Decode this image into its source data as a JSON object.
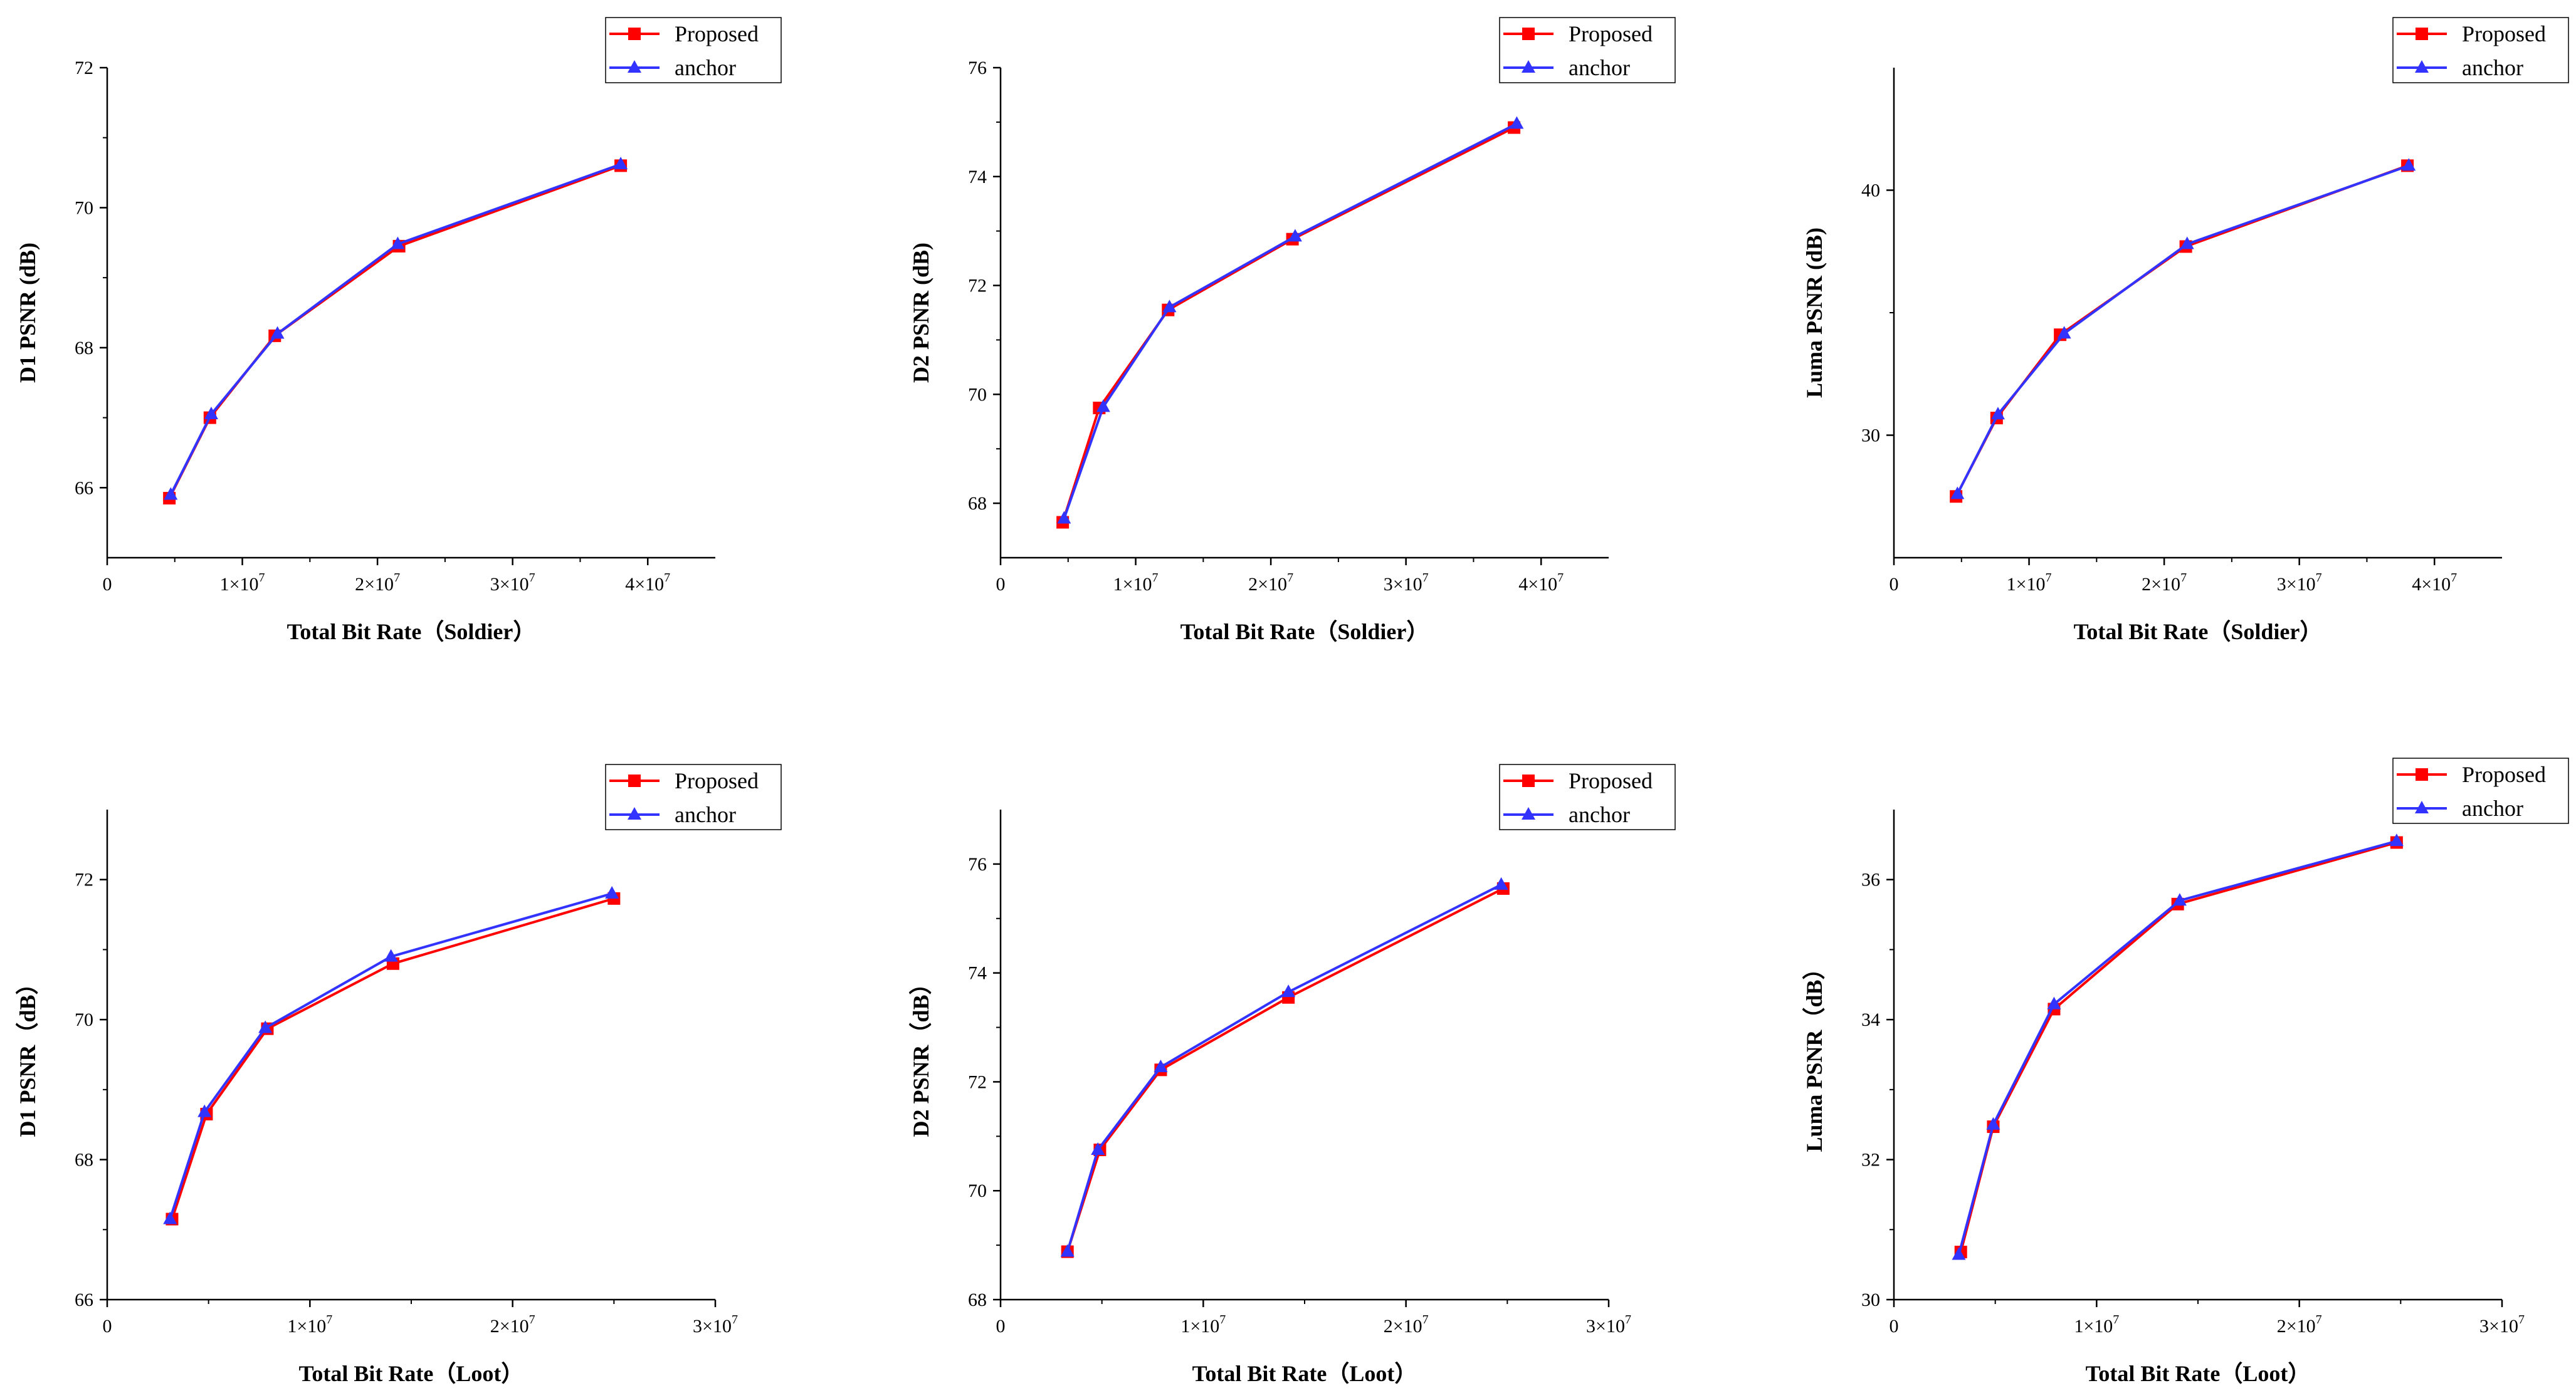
{
  "colors": {
    "proposed": "#ff0000",
    "anchor": "#3333ff",
    "axis": "#000000",
    "background": "#ffffff"
  },
  "chart_data": [
    {
      "type": "line",
      "id": "soldier-d1",
      "xlabel": "Total Bit Rate（Soldier）",
      "ylabel": "D1 PSNR (dB)",
      "xlim": [
        0,
        45000000.0
      ],
      "ylim": [
        65,
        72
      ],
      "xticks": [
        0,
        10000000.0,
        20000000.0,
        30000000.0,
        40000000.0
      ],
      "xtick_labels": [
        "0",
        "1×10",
        "2×10",
        "3×10",
        "4×10"
      ],
      "xtick_exp": "7",
      "yticks": [
        66,
        68,
        70,
        72
      ],
      "ytick_labels": [
        "66",
        "68",
        "70",
        "72"
      ],
      "legend": {
        "entries": [
          "Proposed",
          "anchor"
        ],
        "position": "top-right"
      },
      "series": [
        {
          "name": "Proposed",
          "color": "#ff0000",
          "marker": "square",
          "x": [
            4600000.0,
            7600000.0,
            12400000.0,
            21600000.0,
            38000000.0
          ],
          "y": [
            65.85,
            67.0,
            68.17,
            69.45,
            70.6
          ]
        },
        {
          "name": "anchor",
          "color": "#3333ff",
          "marker": "triangle",
          "x": [
            4700000.0,
            7700000.0,
            12600000.0,
            21500000.0,
            38000000.0
          ],
          "y": [
            65.9,
            67.05,
            68.2,
            69.48,
            70.62
          ]
        }
      ]
    },
    {
      "type": "line",
      "id": "soldier-d2",
      "xlabel": "Total Bit Rate（Soldier）",
      "ylabel": "D2 PSNR (dB)",
      "xlim": [
        0,
        45000000.0
      ],
      "ylim": [
        67,
        76
      ],
      "xticks": [
        0,
        10000000.0,
        20000000.0,
        30000000.0,
        40000000.0
      ],
      "xtick_labels": [
        "0",
        "1×10",
        "2×10",
        "3×10",
        "4×10"
      ],
      "xtick_exp": "7",
      "yticks": [
        68,
        70,
        72,
        74,
        76
      ],
      "ytick_labels": [
        "68",
        "70",
        "72",
        "74",
        "76"
      ],
      "legend": {
        "entries": [
          "Proposed",
          "anchor"
        ],
        "position": "top-right"
      },
      "series": [
        {
          "name": "Proposed",
          "color": "#ff0000",
          "marker": "square",
          "x": [
            4600000.0,
            7300000.0,
            12400000.0,
            21600000.0,
            38000000.0
          ],
          "y": [
            67.65,
            69.75,
            71.55,
            72.85,
            74.9
          ]
        },
        {
          "name": "anchor",
          "color": "#3333ff",
          "marker": "triangle",
          "x": [
            4700000.0,
            7600000.0,
            12500000.0,
            21800000.0,
            38200000.0
          ],
          "y": [
            67.72,
            69.77,
            71.6,
            72.9,
            74.97
          ]
        }
      ]
    },
    {
      "type": "line",
      "id": "soldier-luma",
      "xlabel": "Total Bit Rate（Soldier）",
      "ylabel": "Luma PSNR (dB)",
      "xlim": [
        0,
        45000000.0
      ],
      "ylim": [
        25,
        45
      ],
      "xticks": [
        0,
        10000000.0,
        20000000.0,
        30000000.0,
        40000000.0
      ],
      "xtick_labels": [
        "0",
        "1×10",
        "2×10",
        "3×10",
        "4×10"
      ],
      "xtick_exp": "7",
      "yticks": [
        30,
        40
      ],
      "ytick_labels": [
        "30",
        "40"
      ],
      "legend": {
        "entries": [
          "Proposed",
          "anchor"
        ],
        "position": "top-right"
      },
      "series": [
        {
          "name": "Proposed",
          "color": "#ff0000",
          "marker": "square",
          "x": [
            4600000.0,
            7600000.0,
            12300000.0,
            21600000.0,
            38000000.0
          ],
          "y": [
            27.5,
            30.7,
            34.1,
            37.7,
            41.0
          ]
        },
        {
          "name": "anchor",
          "color": "#3333ff",
          "marker": "triangle",
          "x": [
            4700000.0,
            7700000.0,
            12600000.0,
            21700000.0,
            38100000.0
          ],
          "y": [
            27.6,
            30.85,
            34.15,
            37.8,
            41.0
          ]
        }
      ]
    },
    {
      "type": "line",
      "id": "loot-d1",
      "xlabel": "Total Bit Rate（Loot）",
      "ylabel": "D1 PSNR（dB）",
      "xlim": [
        0,
        30000000.0
      ],
      "ylim": [
        66,
        73
      ],
      "xticks": [
        0,
        10000000.0,
        20000000.0,
        30000000.0
      ],
      "xtick_labels": [
        "0",
        "1×10",
        "2×10",
        "3×10"
      ],
      "xtick_exp": "7",
      "yticks": [
        66,
        68,
        70,
        72
      ],
      "ytick_labels": [
        "66",
        "68",
        "70",
        "72"
      ],
      "legend": {
        "entries": [
          "Proposed",
          "anchor"
        ],
        "position": "top-right"
      },
      "series": [
        {
          "name": "Proposed",
          "color": "#ff0000",
          "marker": "square",
          "x": [
            3200000.0,
            4900000.0,
            7900000.0,
            14100000.0,
            25000000.0
          ],
          "y": [
            67.15,
            68.65,
            69.87,
            70.8,
            71.73
          ]
        },
        {
          "name": "anchor",
          "color": "#3333ff",
          "marker": "triangle",
          "x": [
            3100000.0,
            4800000.0,
            7800000.0,
            14000000.0,
            24900000.0
          ],
          "y": [
            67.15,
            68.68,
            69.88,
            70.9,
            71.8
          ]
        }
      ]
    },
    {
      "type": "line",
      "id": "loot-d2",
      "xlabel": "Total Bit Rate（Loot）",
      "ylabel": "D2 PSNR（dB）",
      "xlim": [
        0,
        30000000.0
      ],
      "ylim": [
        68,
        77
      ],
      "xticks": [
        0,
        10000000.0,
        20000000.0,
        30000000.0
      ],
      "xtick_labels": [
        "0",
        "1×10",
        "2×10",
        "3×10"
      ],
      "xtick_exp": "7",
      "yticks": [
        68,
        70,
        72,
        74,
        76
      ],
      "ytick_labels": [
        "68",
        "70",
        "72",
        "74",
        "76"
      ],
      "legend": {
        "entries": [
          "Proposed",
          "anchor"
        ],
        "position": "top-right"
      },
      "series": [
        {
          "name": "Proposed",
          "color": "#ff0000",
          "marker": "square",
          "x": [
            3300000.0,
            4900000.0,
            7900000.0,
            14200000.0,
            24800000.0
          ],
          "y": [
            68.88,
            70.75,
            72.22,
            73.55,
            75.55
          ]
        },
        {
          "name": "anchor",
          "color": "#3333ff",
          "marker": "triangle",
          "x": [
            3300000.0,
            4800000.0,
            7900000.0,
            14200000.0,
            24700000.0
          ],
          "y": [
            68.88,
            70.75,
            72.27,
            73.65,
            75.62
          ]
        }
      ]
    },
    {
      "type": "line",
      "id": "loot-luma",
      "xlabel": "Total Bit Rate（Loot）",
      "ylabel": "Luma PSNR（dB）",
      "xlim": [
        0,
        30000000.0
      ],
      "ylim": [
        30,
        37
      ],
      "xticks": [
        0,
        10000000.0,
        20000000.0,
        30000000.0
      ],
      "xtick_labels": [
        "0",
        "1×10",
        "2×10",
        "3×10"
      ],
      "xtick_exp": "7",
      "yticks": [
        30,
        32,
        34,
        36
      ],
      "ytick_labels": [
        "30",
        "32",
        "34",
        "36"
      ],
      "legend": {
        "entries": [
          "Proposed",
          "anchor"
        ],
        "position": "top-right"
      },
      "series": [
        {
          "name": "Proposed",
          "color": "#ff0000",
          "marker": "square",
          "x": [
            3300000.0,
            4900000.0,
            7900000.0,
            14000000.0,
            24800000.0
          ],
          "y": [
            30.68,
            32.47,
            34.15,
            35.65,
            36.53
          ]
        },
        {
          "name": "anchor",
          "color": "#3333ff",
          "marker": "triangle",
          "x": [
            3200000.0,
            4900000.0,
            7900000.0,
            14100000.0,
            24800000.0
          ],
          "y": [
            30.64,
            32.5,
            34.22,
            35.7,
            36.55
          ]
        }
      ]
    }
  ]
}
